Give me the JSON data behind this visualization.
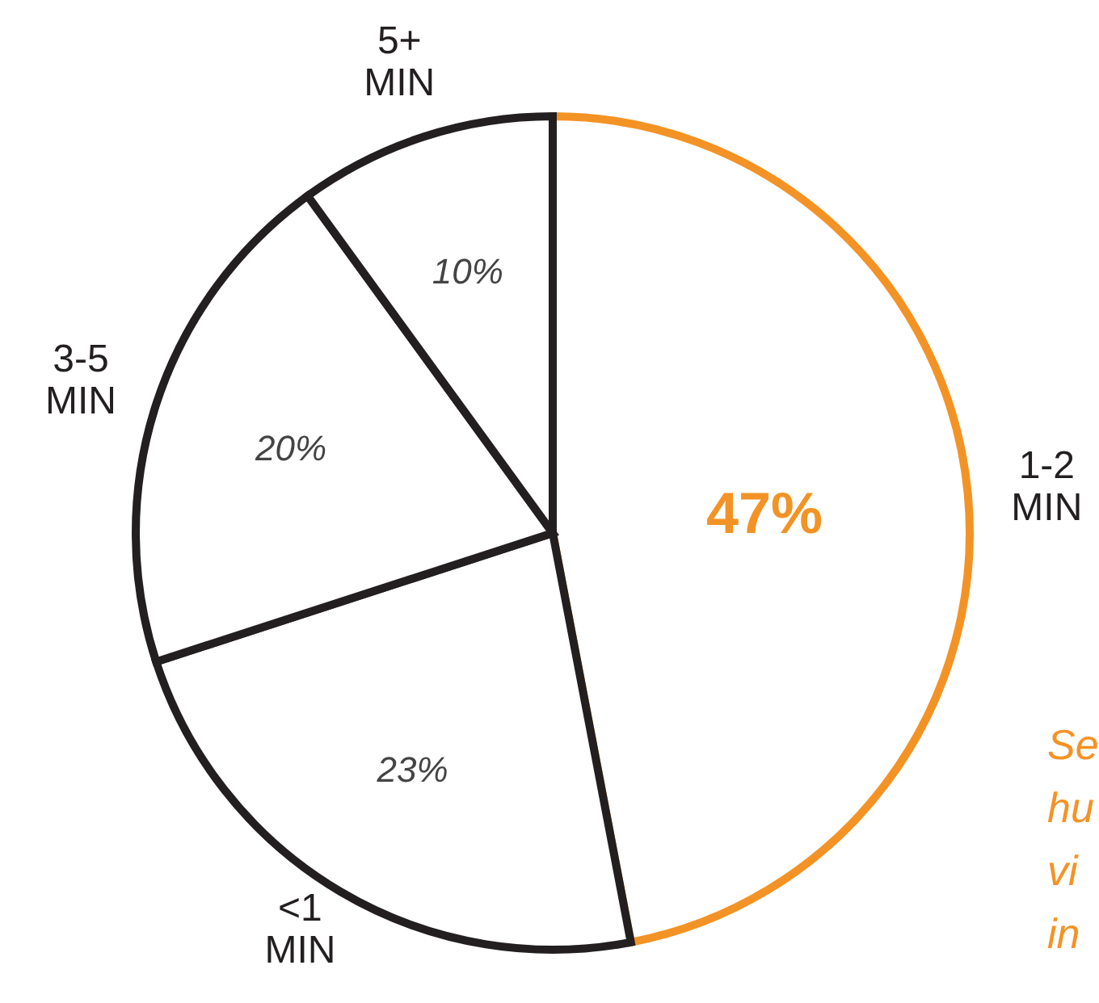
{
  "chart_data": {
    "type": "pie",
    "categories": [
      "1-2 MIN",
      "<1 MIN",
      "3-5 MIN",
      "5+ MIN"
    ],
    "values": [
      47,
      23,
      20,
      10
    ],
    "value_labels": [
      "47%",
      "23%",
      "20%",
      "10%"
    ],
    "colors": [
      "#f39325",
      "#231f20",
      "#231f20",
      "#231f20"
    ],
    "annotations": [
      "Se",
      "hu",
      "vi",
      "in"
    ]
  }
}
